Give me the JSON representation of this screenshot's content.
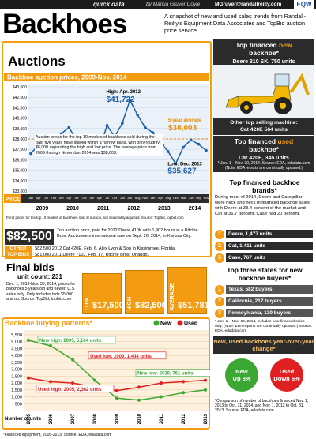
{
  "header": {
    "section": "quick data",
    "byline": "by Marcia Gruver Doyle",
    "email": "MGruver@randallreilly.com",
    "logo": "EQW"
  },
  "title": "Backhoes",
  "intro": "A snapshot of new and used sales trends from Randall-Reilly's Equipment Data Associates and TopBid auction price service.",
  "auctions": {
    "heading": "Auctions",
    "top_price": "$82,500",
    "top_price_text": "Top auction price, paid for 2012 Deere 410K with 1,902 hours at a Ritchie Bros. Auctioneers international sale on Sept. 26, 2014, in Kansas City.",
    "other_label": "OTHER TOP BIDS",
    "other_bids": [
      "$82,500 2012 Cat 420E, Feb. 6, Alex Lyon & Son in Kissimmee, Florida.",
      "$81,000 2011 Deere 710J, Feb. 17, Ritchie Bros, Orlando."
    ]
  },
  "final_bids": {
    "title": "Final bids",
    "unit_count": "unit count: 231",
    "note": "Dec. 1, 2013-Nov. 30, 2014; prices for backhoes 5 years old and newer, U.S. sales only. Only includes bids $5,000 and up. Source: TopBid, topbid.com",
    "boxes": [
      {
        "label": "LOW",
        "value": "$17,500"
      },
      {
        "label": "HIGH",
        "value": "$82,500"
      },
      {
        "label": "AVERAGE",
        "value": "$51,781"
      }
    ]
  },
  "right": {
    "top_new": {
      "pre": "Top financed",
      "em": "new",
      "post": "backhoe*",
      "model": "Deere 310 SK, 750 units"
    },
    "other_machine": {
      "label": "Other top selling machine:",
      "model": "Cat 420E 564 units"
    },
    "top_used": {
      "pre": "Top financed",
      "em": "used",
      "post": "backhoe*",
      "model": "Cat 420E, 345 units"
    },
    "used_note": "* Jan. 1 – Nov. 30, 2014. Source: EDA, edadata.com (Note: EDA reports are continually updated.)",
    "brands": {
      "heading": "Top financed backhoe brands*",
      "text": "During most of 2014, Deere and Caterpillar were neck and neck in financed backhoe sales, with Deere at 38.4 percent of the market and Cat at 36.7 percent. Case had 20 percent.",
      "items": [
        {
          "rank": "1",
          "text": "Deere, 1,477 units"
        },
        {
          "rank": "2",
          "text": "Cat, 1,411 units"
        },
        {
          "rank": "3",
          "text": "Case, 767 units"
        }
      ]
    },
    "states": {
      "heading": "Top three states for new backhoe buyers*",
      "items": [
        {
          "rank": "1",
          "text": "Texas, 582 buyers"
        },
        {
          "rank": "2",
          "text": "California, 217 buyers"
        },
        {
          "rank": "3",
          "text": "Pennsylvania, 130 buyers"
        }
      ],
      "note": "* Jan. 1 – Nov. 30, 2014, includes new financed sales only. (Note: EDA reports are continually updated.) Source: EDA, edadata.com"
    },
    "yoy": {
      "heading": "New, used backhoes year-over-year change*",
      "new_label": "New",
      "new_value": "Up 8%",
      "used_label": "Used",
      "used_value": "Down 6%",
      "note": "*Comparison of number of backhoes financed Nov. 1, 2013 to Oct. 31, 2014, and Nov. 1, 2012 to Oct. 31, 2013. Source: EDA, edadata.com"
    }
  },
  "chart_data": [
    {
      "type": "line",
      "title": "Backhoe auction prices, 2009-Nov. 2014",
      "row_label": "PRICE",
      "categories": [
        "Jan",
        "Apr",
        "Jul",
        "Oct",
        "Jan",
        "Apr",
        "Jul",
        "Oct",
        "Jan",
        "Apr",
        "Jul",
        "Oct",
        "Jan",
        "Apr",
        "Aug",
        "Nov",
        "Jan",
        "Apr",
        "Aug",
        "Dec",
        "Mar",
        "Jun",
        "Sep",
        "Nov"
      ],
      "year_labels": [
        "2009",
        "2010",
        "2011",
        "2012",
        "2013",
        "2014"
      ],
      "values": [
        36600,
        37400,
        38300,
        37000,
        38500,
        39100,
        37900,
        37600,
        37800,
        37000,
        39300,
        38200,
        39500,
        41722,
        40300,
        39100,
        38600,
        37700,
        36800,
        35627,
        37200,
        37900,
        37500,
        36900
      ],
      "color": "#1f5fa8",
      "average": 38003,
      "average_color": "#f08c00",
      "ylim": [
        33000,
        43000
      ],
      "yticks": [
        {
          "value": 33000,
          "label": "$33,000"
        },
        {
          "value": 34000,
          "label": "$34,000"
        },
        {
          "value": 35000,
          "label": "$35,000"
        },
        {
          "value": 36000,
          "label": "$36,000"
        },
        {
          "value": 37000,
          "label": "$37,000"
        },
        {
          "value": 38000,
          "label": "$38,000"
        },
        {
          "value": 39000,
          "label": "$39,000"
        },
        {
          "value": 40000,
          "label": "$40,000"
        },
        {
          "value": 41000,
          "label": "$41,000"
        },
        {
          "value": 42000,
          "label": "$42,000"
        },
        {
          "value": 43000,
          "label": "$43,000"
        }
      ],
      "grid": true,
      "high_label": "High: Apr. 2012",
      "high_value": "$41,722",
      "low_label": "Low: Dec. 2013",
      "low_value": "$35,627",
      "average_label": "5-year average",
      "average_value": "$38,003",
      "note": "Auction prices for the top 10 models of backhoes sold during the past five years have stayed within a narrow band, with only roughly $6,000 separating the high and low price. The average price from 2009 through November 2014 was $38,003.",
      "source": "Trend prices for the top 10 models of backhoes sold at auction, not seasonally adjusted. Source: TopBid, topbid.com"
    },
    {
      "type": "line",
      "title": "Backhoe buying patterns*",
      "y_label": "Number of units",
      "categories": [
        "2005",
        "2006",
        "2007",
        "2008",
        "2009",
        "2010",
        "2011",
        "2012",
        "2013"
      ],
      "series": [
        {
          "name": "New",
          "color": "#3aa832",
          "values": [
            5104,
            4700,
            3700,
            2200,
            900,
            761,
            1000,
            1300,
            1500
          ]
        },
        {
          "name": "Used",
          "color": "#e02020",
          "values": [
            2362,
            2100,
            2000,
            1700,
            1444,
            1700,
            2000,
            2100,
            2200
          ]
        }
      ],
      "ylim": [
        0,
        5500
      ],
      "yticks": [
        500,
        {
          "value": 1000,
          "label": "1,000"
        },
        {
          "value": 1500,
          "label": "1,500"
        },
        {
          "value": 2000,
          "label": "2,000"
        },
        {
          "value": 2500,
          "label": "2,500"
        },
        {
          "value": 3000,
          "label": "3,000"
        },
        {
          "value": 3500,
          "label": "3,500"
        },
        {
          "value": 4000,
          "label": "4,000"
        },
        {
          "value": 4500,
          "label": "4,500"
        },
        {
          "value": 5000,
          "label": "5,000"
        },
        {
          "value": 5500,
          "label": "5,500"
        }
      ],
      "grid": true,
      "annotations": [
        "New high: 2005, 5,104 units",
        "Used low: 2009, 1,444 units",
        "New low: 2010, 761 units",
        "Used high: 2005, 2,362 units"
      ],
      "footnote": "*Financed equipment, 2005-2013. Source: EDA, edadata.com"
    }
  ]
}
